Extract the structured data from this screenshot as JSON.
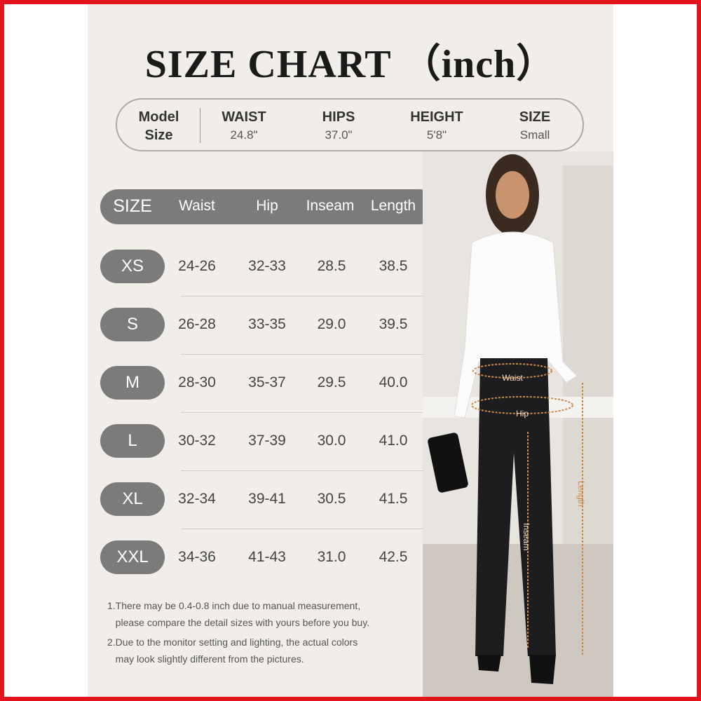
{
  "title": "SIZE CHART （inch）",
  "model": {
    "label_line1": "Model",
    "label_line2": "Size",
    "columns": [
      {
        "header": "WAIST",
        "value": "24.8\""
      },
      {
        "header": "HIPS",
        "value": "37.0\""
      },
      {
        "header": "HEIGHT",
        "value": "5'8\""
      },
      {
        "header": "SIZE",
        "value": "Small"
      }
    ]
  },
  "table": {
    "headers": [
      "SIZE",
      "Waist",
      "Hip",
      "Inseam",
      "Length"
    ],
    "rows": [
      {
        "size": "XS",
        "waist": "24-26",
        "hip": "32-33",
        "inseam": "28.5",
        "length": "38.5"
      },
      {
        "size": "S",
        "waist": "26-28",
        "hip": "33-35",
        "inseam": "29.0",
        "length": "39.5"
      },
      {
        "size": "M",
        "waist": "28-30",
        "hip": "35-37",
        "inseam": "29.5",
        "length": "40.0"
      },
      {
        "size": "L",
        "waist": "30-32",
        "hip": "37-39",
        "inseam": "30.0",
        "length": "41.0"
      },
      {
        "size": "XL",
        "waist": "32-34",
        "hip": "39-41",
        "inseam": "30.5",
        "length": "41.5"
      },
      {
        "size": "XXL",
        "waist": "34-36",
        "hip": "41-43",
        "inseam": "31.0",
        "length": "42.5"
      }
    ]
  },
  "notes": [
    {
      "line1": "1.There may be 0.4-0.8 inch due to manual measurement,",
      "line2": "please compare the detail sizes with yours before you buy."
    },
    {
      "line1": "2.Due to the monitor setting and lighting, the actual colors",
      "line2": "may look slightly different from the pictures."
    }
  ],
  "photo_labels": {
    "waist": "Waist",
    "hip": "Hip",
    "inseam": "Inseam",
    "length": "Length"
  },
  "colors": {
    "border": "#e3141b",
    "panel": "#f1eeea",
    "pill": "#7b7b7b",
    "measure": "#c98a4a"
  }
}
